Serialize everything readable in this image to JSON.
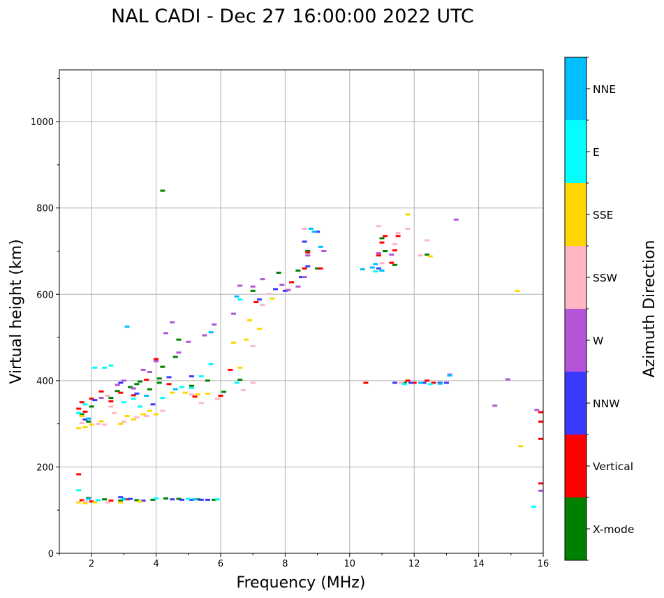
{
  "chart_data": {
    "type": "scatter",
    "title": "NAL CADI - Dec 27 16:00:00 2022 UTC",
    "xlabel": "Frequency (MHz)",
    "ylabel": "Virtual height (km)",
    "xlim": [
      1,
      16
    ],
    "ylim": [
      0,
      1120
    ],
    "xticks": [
      2,
      4,
      6,
      8,
      10,
      12,
      14,
      16
    ],
    "yticks": [
      0,
      200,
      400,
      600,
      800,
      1000
    ],
    "grid": true,
    "colorbar": {
      "label": "Azimuth Direction",
      "categories": [
        "X-mode",
        "Vertical",
        "NNW",
        "W",
        "SSW",
        "SSE",
        "E",
        "NNE"
      ],
      "colors": [
        "#008000",
        "#ff0000",
        "#3a3aff",
        "#b455d8",
        "#ffb6c1",
        "#ffd700",
        "#00ffff",
        "#00bfff"
      ]
    },
    "series": [
      {
        "name": "X-mode",
        "points": [
          [
            1.7,
            322
          ],
          [
            1.9,
            305
          ],
          [
            2.0,
            340
          ],
          [
            2.6,
            360
          ],
          [
            2.8,
            376
          ],
          [
            3.2,
            385
          ],
          [
            3.4,
            392
          ],
          [
            3.5,
            398
          ],
          [
            3.8,
            380
          ],
          [
            4.1,
            405
          ],
          [
            4.1,
            395
          ],
          [
            4.2,
            840
          ],
          [
            4.2,
            432
          ],
          [
            4.6,
            455
          ],
          [
            4.7,
            495
          ],
          [
            5.1,
            388
          ],
          [
            5.6,
            400
          ],
          [
            6.1,
            374
          ],
          [
            6.6,
            402
          ],
          [
            7.0,
            608
          ],
          [
            7.8,
            650
          ],
          [
            8.4,
            655
          ],
          [
            8.7,
            700
          ],
          [
            9.0,
            660
          ],
          [
            11.0,
            730
          ],
          [
            11.1,
            700
          ],
          [
            11.4,
            668
          ],
          [
            11.7,
            395
          ],
          [
            12.4,
            692
          ],
          [
            1.9,
            128
          ],
          [
            2.4,
            125
          ],
          [
            2.9,
            122
          ],
          [
            3.4,
            123
          ],
          [
            3.9,
            124
          ],
          [
            4.3,
            127
          ],
          [
            4.7,
            126
          ],
          [
            5.3,
            125
          ],
          [
            5.8,
            124
          ]
        ]
      },
      {
        "name": "Vertical",
        "points": [
          [
            1.6,
            335
          ],
          [
            1.7,
            350
          ],
          [
            1.8,
            328
          ],
          [
            2.0,
            358
          ],
          [
            2.3,
            375
          ],
          [
            2.6,
            352
          ],
          [
            2.9,
            372
          ],
          [
            3.3,
            366
          ],
          [
            3.7,
            402
          ],
          [
            4.0,
            450
          ],
          [
            4.4,
            392
          ],
          [
            5.2,
            363
          ],
          [
            6.0,
            365
          ],
          [
            6.3,
            425
          ],
          [
            7.1,
            582
          ],
          [
            8.2,
            628
          ],
          [
            8.6,
            660
          ],
          [
            8.7,
            697
          ],
          [
            9.1,
            660
          ],
          [
            10.5,
            395
          ],
          [
            10.9,
            690
          ],
          [
            11.0,
            720
          ],
          [
            11.1,
            735
          ],
          [
            11.3,
            673
          ],
          [
            11.4,
            702
          ],
          [
            11.5,
            735
          ],
          [
            11.8,
            400
          ],
          [
            12.0,
            395
          ],
          [
            12.4,
            400
          ],
          [
            12.6,
            395
          ],
          [
            16.0,
            327
          ],
          [
            16.0,
            305
          ],
          [
            16.0,
            265
          ],
          [
            16.0,
            162
          ],
          [
            1.6,
            183
          ],
          [
            1.7,
            123
          ],
          [
            2.0,
            120
          ],
          [
            2.6,
            122
          ],
          [
            3.1,
            125
          ]
        ]
      },
      {
        "name": "NNW",
        "points": [
          [
            1.8,
            310
          ],
          [
            2.1,
            355
          ],
          [
            2.9,
            395
          ],
          [
            3.4,
            370
          ],
          [
            3.9,
            345
          ],
          [
            4.4,
            408
          ],
          [
            5.1,
            410
          ],
          [
            7.2,
            588
          ],
          [
            7.7,
            612
          ],
          [
            8.0,
            608
          ],
          [
            8.5,
            640
          ],
          [
            8.6,
            722
          ],
          [
            8.7,
            665
          ],
          [
            9.0,
            745
          ],
          [
            10.9,
            660
          ],
          [
            11.4,
            395
          ],
          [
            11.9,
            395
          ],
          [
            12.3,
            395
          ],
          [
            12.8,
            395
          ],
          [
            13.0,
            395
          ],
          [
            2.9,
            130
          ],
          [
            3.2,
            126
          ],
          [
            3.6,
            122
          ],
          [
            4.5,
            125
          ],
          [
            4.8,
            124
          ],
          [
            5.1,
            124
          ],
          [
            5.4,
            124
          ],
          [
            5.6,
            124
          ]
        ]
      },
      {
        "name": "W",
        "points": [
          [
            1.7,
            318
          ],
          [
            2.3,
            360
          ],
          [
            2.8,
            390
          ],
          [
            3.0,
            400
          ],
          [
            3.3,
            382
          ],
          [
            3.6,
            425
          ],
          [
            3.8,
            420
          ],
          [
            4.0,
            445
          ],
          [
            4.3,
            510
          ],
          [
            4.5,
            535
          ],
          [
            4.7,
            465
          ],
          [
            5.0,
            490
          ],
          [
            5.5,
            505
          ],
          [
            5.8,
            530
          ],
          [
            6.4,
            555
          ],
          [
            6.6,
            620
          ],
          [
            7.0,
            618
          ],
          [
            7.3,
            635
          ],
          [
            7.9,
            622
          ],
          [
            8.1,
            610
          ],
          [
            8.4,
            618
          ],
          [
            8.6,
            640
          ],
          [
            8.7,
            690
          ],
          [
            9.2,
            700
          ],
          [
            10.9,
            695
          ],
          [
            11.3,
            692
          ],
          [
            13.3,
            773
          ],
          [
            13.1,
            414
          ],
          [
            14.5,
            342
          ],
          [
            14.9,
            403
          ],
          [
            15.8,
            332
          ],
          [
            16.0,
            145
          ]
        ]
      },
      {
        "name": "SSW",
        "points": [
          [
            1.7,
            302
          ],
          [
            1.9,
            312
          ],
          [
            2.2,
            300
          ],
          [
            2.4,
            298
          ],
          [
            2.5,
            365
          ],
          [
            2.6,
            340
          ],
          [
            2.7,
            325
          ],
          [
            3.0,
            305
          ],
          [
            3.4,
            315
          ],
          [
            3.7,
            318
          ],
          [
            4.2,
            330
          ],
          [
            5.1,
            368
          ],
          [
            5.4,
            348
          ],
          [
            5.9,
            358
          ],
          [
            6.7,
            378
          ],
          [
            7.0,
            395
          ],
          [
            7.0,
            480
          ],
          [
            7.3,
            575
          ],
          [
            7.5,
            601
          ],
          [
            8.6,
            752
          ],
          [
            10.9,
            758
          ],
          [
            11.5,
            742
          ],
          [
            11.8,
            752
          ],
          [
            12.4,
            725
          ],
          [
            12.2,
            690
          ],
          [
            11.0,
            672
          ],
          [
            11.4,
            716
          ],
          [
            11.6,
            395
          ],
          [
            1.8,
            120
          ],
          [
            2.5,
            118
          ]
        ]
      },
      {
        "name": "SSE",
        "points": [
          [
            1.6,
            290
          ],
          [
            1.7,
            318
          ],
          [
            1.8,
            292
          ],
          [
            2.0,
            298
          ],
          [
            2.3,
            306
          ],
          [
            2.9,
            300
          ],
          [
            3.1,
            318
          ],
          [
            3.3,
            310
          ],
          [
            3.6,
            322
          ],
          [
            3.8,
            330
          ],
          [
            4.0,
            322
          ],
          [
            4.5,
            372
          ],
          [
            4.9,
            372
          ],
          [
            5.3,
            368
          ],
          [
            5.6,
            370
          ],
          [
            6.4,
            488
          ],
          [
            6.6,
            430
          ],
          [
            6.8,
            495
          ],
          [
            6.9,
            540
          ],
          [
            7.2,
            520
          ],
          [
            7.6,
            590
          ],
          [
            11.8,
            785
          ],
          [
            12.5,
            688
          ],
          [
            15.2,
            608
          ],
          [
            15.3,
            248
          ],
          [
            1.6,
            118
          ],
          [
            1.8,
            116
          ],
          [
            2.1,
            118
          ],
          [
            2.9,
            118
          ],
          [
            3.5,
            120
          ]
        ]
      },
      {
        "name": "E",
        "points": [
          [
            1.6,
            325
          ],
          [
            1.8,
            345
          ],
          [
            2.1,
            430
          ],
          [
            2.4,
            430
          ],
          [
            2.6,
            435
          ],
          [
            3.0,
            350
          ],
          [
            3.3,
            358
          ],
          [
            3.5,
            340
          ],
          [
            4.2,
            360
          ],
          [
            4.8,
            385
          ],
          [
            5.1,
            383
          ],
          [
            5.4,
            410
          ],
          [
            5.7,
            438
          ],
          [
            6.5,
            395
          ],
          [
            6.6,
            588
          ],
          [
            10.8,
            653
          ],
          [
            11.0,
            655
          ],
          [
            11.7,
            392
          ],
          [
            12.5,
            392
          ],
          [
            15.7,
            108
          ],
          [
            1.6,
            146
          ],
          [
            2.2,
            123
          ],
          [
            3.0,
            125
          ],
          [
            4.0,
            127
          ],
          [
            5.0,
            126
          ],
          [
            5.9,
            125
          ]
        ]
      },
      {
        "name": "NNE",
        "points": [
          [
            1.9,
            312
          ],
          [
            3.1,
            525
          ],
          [
            3.7,
            365
          ],
          [
            4.6,
            380
          ],
          [
            5.7,
            512
          ],
          [
            6.5,
            595
          ],
          [
            8.8,
            752
          ],
          [
            8.9,
            745
          ],
          [
            9.1,
            710
          ],
          [
            10.4,
            658
          ],
          [
            10.7,
            662
          ],
          [
            10.8,
            670
          ],
          [
            11.0,
            655
          ],
          [
            12.2,
            395
          ],
          [
            12.8,
            393
          ],
          [
            13.1,
            412
          ],
          [
            1.9,
            126
          ],
          [
            3.0,
            126
          ],
          [
            5.2,
            125
          ]
        ]
      }
    ]
  }
}
